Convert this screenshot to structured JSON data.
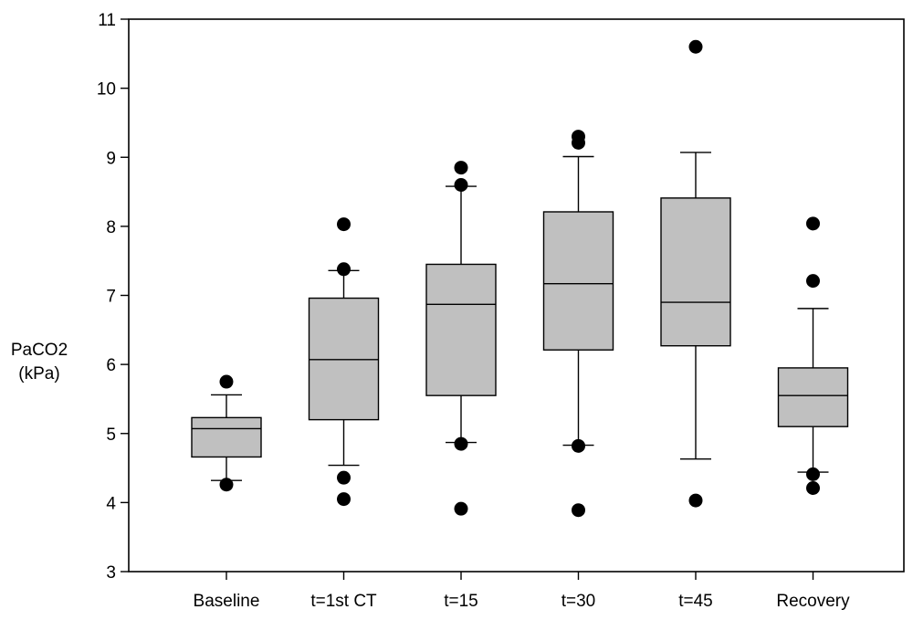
{
  "chart_data": {
    "type": "box",
    "title": "",
    "xlabel": "",
    "ylabel": [
      "PaCO2",
      "(kPa)"
    ],
    "ylim": [
      3,
      11
    ],
    "yticks": [
      3,
      4,
      5,
      6,
      7,
      8,
      9,
      10,
      11
    ],
    "grid": false,
    "legend": "none",
    "box_fill": "#c0c0c0",
    "categories": [
      "Baseline",
      "t=1st CT",
      "t=15",
      "t=30",
      "t=45",
      "Recovery"
    ],
    "boxes": [
      {
        "category": "Baseline",
        "whisker_low": 4.32,
        "q1": 4.66,
        "median": 5.07,
        "q3": 5.23,
        "whisker_high": 5.56,
        "outliers": [
          5.75,
          4.26
        ]
      },
      {
        "category": "t=1st CT",
        "whisker_low": 4.54,
        "q1": 5.2,
        "median": 6.07,
        "q3": 6.96,
        "whisker_high": 7.36,
        "outliers": [
          8.03,
          7.38,
          4.36,
          4.05
        ]
      },
      {
        "category": "t=15",
        "whisker_low": 4.87,
        "q1": 5.55,
        "median": 6.87,
        "q3": 7.45,
        "whisker_high": 8.58,
        "outliers": [
          8.85,
          8.6,
          4.85,
          3.91
        ]
      },
      {
        "category": "t=30",
        "whisker_low": 4.83,
        "q1": 6.21,
        "median": 7.17,
        "q3": 8.21,
        "whisker_high": 9.01,
        "outliers": [
          9.3,
          9.21,
          4.82,
          3.89
        ]
      },
      {
        "category": "t=45",
        "whisker_low": 4.63,
        "q1": 6.27,
        "median": 6.9,
        "q3": 8.41,
        "whisker_high": 9.07,
        "outliers": [
          10.6,
          4.03
        ]
      },
      {
        "category": "Recovery",
        "whisker_low": 4.44,
        "q1": 5.1,
        "median": 5.55,
        "q3": 5.95,
        "whisker_high": 6.81,
        "outliers": [
          8.04,
          7.21,
          4.41,
          4.21
        ]
      }
    ]
  }
}
